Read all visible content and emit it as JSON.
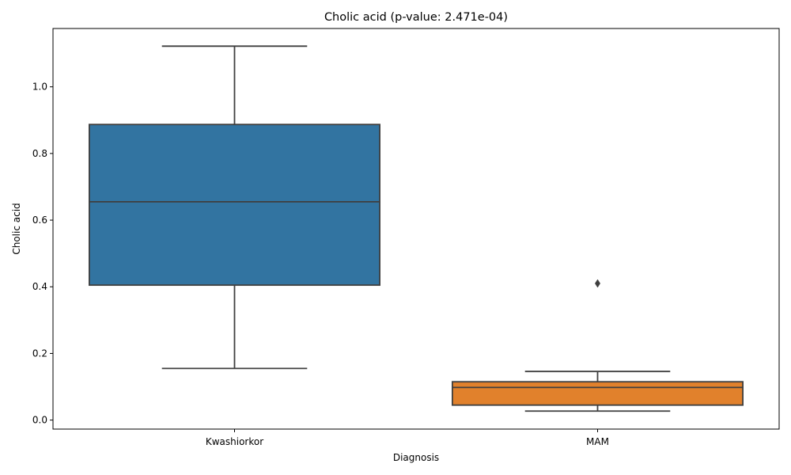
{
  "chart_data": {
    "type": "box",
    "title": "Cholic acid (p-value: 2.471e-04)",
    "xlabel": "Diagnosis",
    "ylabel": "Cholic acid",
    "ylim": [
      -0.027,
      1.175
    ],
    "yticks": [
      "0.0",
      "0.2",
      "0.4",
      "0.6",
      "0.8",
      "1.0"
    ],
    "categories": [
      "Kwashiorkor",
      "MAM"
    ],
    "boxes": [
      {
        "category": "Kwashiorkor",
        "whisker_low": 0.155,
        "q1": 0.405,
        "median": 0.655,
        "q3": 0.887,
        "whisker_high": 1.122,
        "outliers": [],
        "color": "#3274a1"
      },
      {
        "category": "MAM",
        "whisker_low": 0.027,
        "q1": 0.045,
        "median": 0.098,
        "q3": 0.115,
        "whisker_high": 0.146,
        "outliers": [
          0.41
        ],
        "color": "#e1812c"
      }
    ],
    "line_color": "#3f3f3f",
    "grid": false,
    "legend": "none"
  }
}
